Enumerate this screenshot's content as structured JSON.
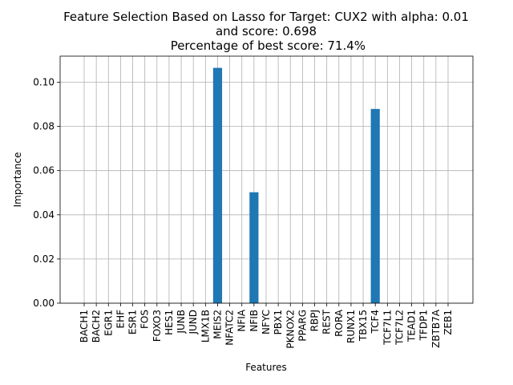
{
  "chart_data": {
    "type": "bar",
    "title_lines": [
      "Feature Selection Based on Lasso for Target: CUX2 with alpha: 0.01",
      "and score: 0.698",
      " Percentage of best score: 71.4%"
    ],
    "xlabel": "Features",
    "ylabel": "Importance",
    "ylim": [
      0,
      0.1118
    ],
    "yticks": [
      0.0,
      0.02,
      0.04,
      0.06,
      0.08,
      0.1
    ],
    "ytick_labels": [
      "0.00",
      "0.02",
      "0.04",
      "0.06",
      "0.08",
      "0.10"
    ],
    "grid": true,
    "bar_color": "#1f77b4",
    "categories": [
      "BACH1",
      "BACH2",
      "EGR1",
      "EHF",
      "ESR1",
      "FOS",
      "FOXO3",
      "HES1",
      "JUNB",
      "JUND",
      "LMX1B",
      "MEIS2",
      "NFATC2",
      "NFIA",
      "NFIB",
      "NFYC",
      "PBX1",
      "PKNOX2",
      "PPARG",
      "RBPJ",
      "REST",
      "RORA",
      "RUNX1",
      "TBX15",
      "TCF4",
      "TCF7L1",
      "TCF7L2",
      "TEAD1",
      "TFDP1",
      "ZBTB7A",
      "ZEB1"
    ],
    "values": [
      0,
      0,
      0,
      0,
      0,
      0,
      0,
      0,
      0,
      0,
      0,
      0.1065,
      0,
      0,
      0.0502,
      0,
      0,
      0,
      0,
      0,
      0,
      0,
      0,
      0,
      0.0879,
      0,
      0,
      0,
      0,
      0,
      0
    ]
  }
}
